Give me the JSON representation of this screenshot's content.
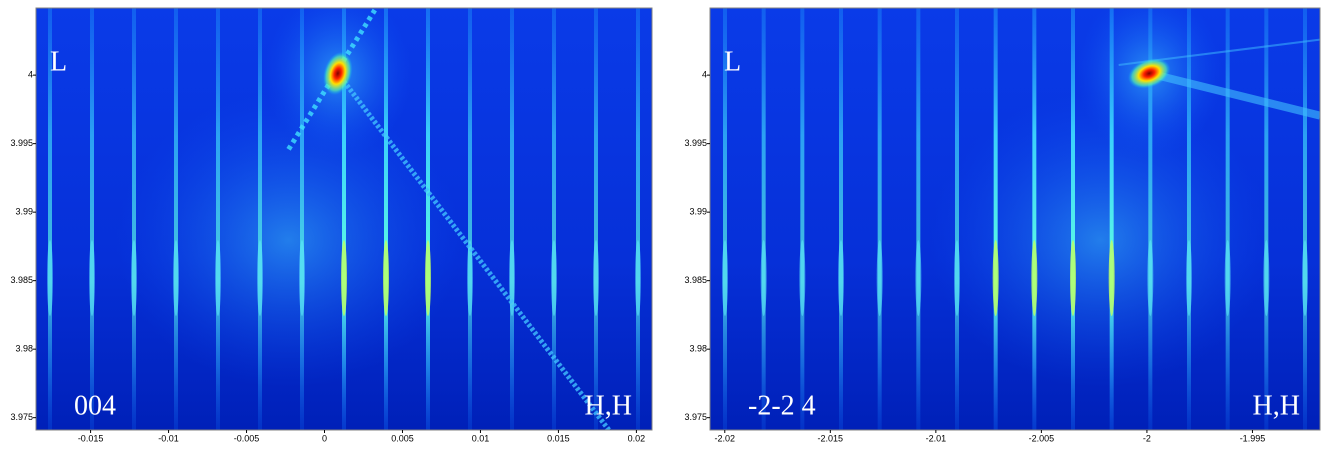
{
  "chart_data": [
    {
      "type": "image",
      "xlim": [
        -0.0185,
        0.021
      ],
      "ylim": [
        3.9741,
        4.0049
      ],
      "xticks": [
        -0.015,
        -0.01,
        -0.005,
        0,
        0.005,
        0.01,
        0.015,
        0.02
      ],
      "yticks": [
        3.975,
        3.98,
        3.985,
        3.99,
        3.995,
        4
      ],
      "annotations": [
        "L",
        "004",
        "H,H"
      ]
    },
    {
      "type": "image",
      "xlim": [
        -2.0207,
        -1.9918
      ],
      "ylim": [
        3.9741,
        4.0049
      ],
      "xticks": [
        -2.02,
        -2.015,
        -2.01,
        -2.005,
        -2,
        -1.995
      ],
      "yticks": [
        3.975,
        3.98,
        3.985,
        3.99,
        3.995,
        4
      ],
      "annotations": [
        "L",
        "-2-2 4",
        "H,H"
      ]
    }
  ]
}
